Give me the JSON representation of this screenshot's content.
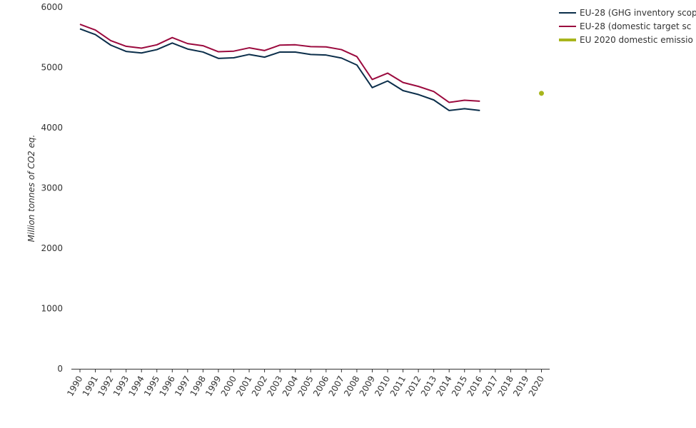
{
  "chart_data": {
    "type": "line",
    "ylabel": "Million tonnes of CO2 eq.",
    "ylim": [
      0,
      6000
    ],
    "yticks": [
      0,
      1000,
      2000,
      3000,
      4000,
      5000,
      6000
    ],
    "categories": [
      "1990",
      "1991",
      "1992",
      "1993",
      "1994",
      "1995",
      "1996",
      "1997",
      "1998",
      "1999",
      "2000",
      "2001",
      "2002",
      "2003",
      "2004",
      "2005",
      "2006",
      "2007",
      "2008",
      "2009",
      "2010",
      "2011",
      "2012",
      "2013",
      "2014",
      "2015",
      "2016",
      "2017",
      "2018",
      "2019",
      "2020"
    ],
    "grid": false,
    "legend_position": "top-right",
    "series": [
      {
        "name": "EU-28 (GHG inventory scop",
        "color": "#0b2e4a",
        "kind": "line",
        "values": [
          5640,
          5545,
          5370,
          5265,
          5240,
          5295,
          5405,
          5305,
          5255,
          5150,
          5160,
          5215,
          5170,
          5255,
          5255,
          5215,
          5205,
          5155,
          5040,
          4665,
          4775,
          4615,
          4550,
          4460,
          4285,
          4315,
          4285,
          null,
          null,
          null,
          null
        ]
      },
      {
        "name": "EU-28 (domestic target sc",
        "color": "#9b0a3e",
        "kind": "line",
        "values": [
          5715,
          5620,
          5445,
          5350,
          5320,
          5375,
          5495,
          5395,
          5360,
          5260,
          5270,
          5325,
          5280,
          5370,
          5375,
          5345,
          5340,
          5295,
          5180,
          4800,
          4905,
          4750,
          4685,
          4600,
          4420,
          4455,
          4440,
          null,
          null,
          null,
          null
        ]
      },
      {
        "name": "EU 2020 domestic emissio",
        "color": "#a8b51c",
        "kind": "point",
        "values": [
          null,
          null,
          null,
          null,
          null,
          null,
          null,
          null,
          null,
          null,
          null,
          null,
          null,
          null,
          null,
          null,
          null,
          null,
          null,
          null,
          null,
          null,
          null,
          null,
          null,
          null,
          null,
          null,
          null,
          null,
          4570
        ]
      }
    ]
  }
}
